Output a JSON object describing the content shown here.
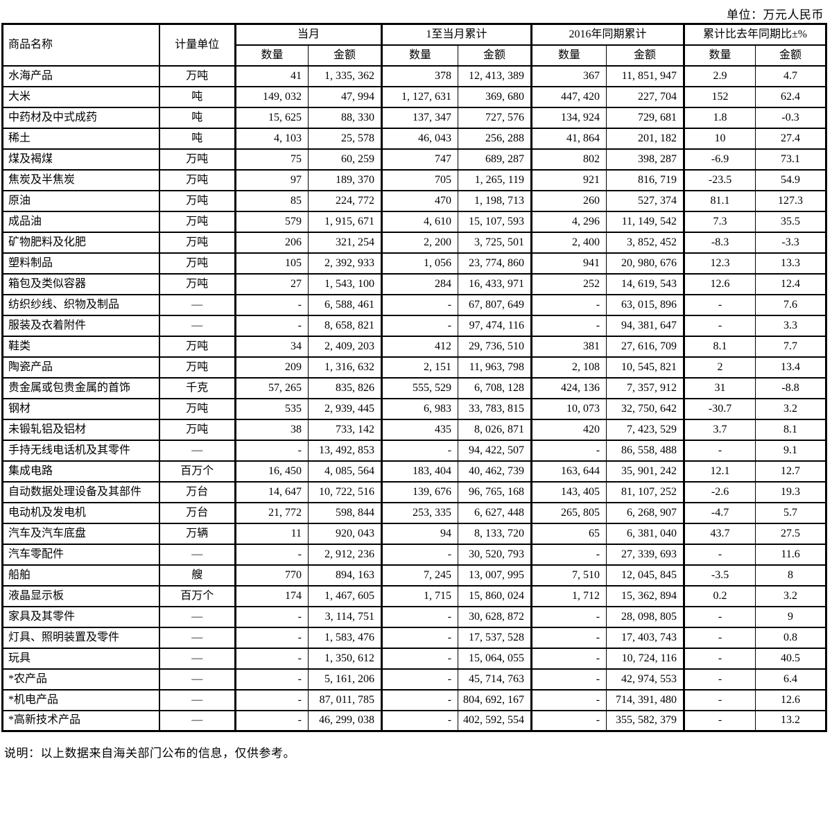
{
  "page": {
    "unit_note": "单位：万元人民币",
    "footer_note": "说明：以上数据来自海关部门公布的信息，仅供参考。"
  },
  "table": {
    "columns": {
      "product": "商品名称",
      "unit": "计量单位",
      "qty": "数量",
      "amount": "金额",
      "groups": [
        "当月",
        "1至当月累计",
        "2016年同期累计",
        "累计比去年同期比±%"
      ]
    },
    "rows": [
      {
        "name": "水海产品",
        "unit": "万吨",
        "month_qty": "41",
        "month_amt": "1,335,362",
        "cum_qty": "378",
        "cum_amt": "12,413,389",
        "prev_qty": "367",
        "prev_amt": "11,851,947",
        "pct_qty": "2.9",
        "pct_amt": "4.7"
      },
      {
        "name": "大米",
        "unit": "吨",
        "month_qty": "149,032",
        "month_amt": "47,994",
        "cum_qty": "1,127,631",
        "cum_amt": "369,680",
        "prev_qty": "447,420",
        "prev_amt": "227,704",
        "pct_qty": "152",
        "pct_amt": "62.4"
      },
      {
        "name": "中药材及中式成药",
        "unit": "吨",
        "month_qty": "15,625",
        "month_amt": "88,330",
        "cum_qty": "137,347",
        "cum_amt": "727,576",
        "prev_qty": "134,924",
        "prev_amt": "729,681",
        "pct_qty": "1.8",
        "pct_amt": "-0.3"
      },
      {
        "name": "稀土",
        "unit": "吨",
        "month_qty": "4,103",
        "month_amt": "25,578",
        "cum_qty": "46,043",
        "cum_amt": "256,288",
        "prev_qty": "41,864",
        "prev_amt": "201,182",
        "pct_qty": "10",
        "pct_amt": "27.4"
      },
      {
        "name": "煤及褐煤",
        "unit": "万吨",
        "month_qty": "75",
        "month_amt": "60,259",
        "cum_qty": "747",
        "cum_amt": "689,287",
        "prev_qty": "802",
        "prev_amt": "398,287",
        "pct_qty": "-6.9",
        "pct_amt": "73.1"
      },
      {
        "name": "焦炭及半焦炭",
        "unit": "万吨",
        "month_qty": "97",
        "month_amt": "189,370",
        "cum_qty": "705",
        "cum_amt": "1,265,119",
        "prev_qty": "921",
        "prev_amt": "816,719",
        "pct_qty": "-23.5",
        "pct_amt": "54.9"
      },
      {
        "name": "原油",
        "unit": "万吨",
        "month_qty": "85",
        "month_amt": "224,772",
        "cum_qty": "470",
        "cum_amt": "1,198,713",
        "prev_qty": "260",
        "prev_amt": "527,374",
        "pct_qty": "81.1",
        "pct_amt": "127.3"
      },
      {
        "name": "成品油",
        "unit": "万吨",
        "month_qty": "579",
        "month_amt": "1,915,671",
        "cum_qty": "4,610",
        "cum_amt": "15,107,593",
        "prev_qty": "4,296",
        "prev_amt": "11,149,542",
        "pct_qty": "7.3",
        "pct_amt": "35.5"
      },
      {
        "name": "矿物肥料及化肥",
        "unit": "万吨",
        "month_qty": "206",
        "month_amt": "321,254",
        "cum_qty": "2,200",
        "cum_amt": "3,725,501",
        "prev_qty": "2,400",
        "prev_amt": "3,852,452",
        "pct_qty": "-8.3",
        "pct_amt": "-3.3"
      },
      {
        "name": "塑料制品",
        "unit": "万吨",
        "month_qty": "105",
        "month_amt": "2,392,933",
        "cum_qty": "1,056",
        "cum_amt": "23,774,860",
        "prev_qty": "941",
        "prev_amt": "20,980,676",
        "pct_qty": "12.3",
        "pct_amt": "13.3"
      },
      {
        "name": "箱包及类似容器",
        "unit": "万吨",
        "month_qty": "27",
        "month_amt": "1,543,100",
        "cum_qty": "284",
        "cum_amt": "16,433,971",
        "prev_qty": "252",
        "prev_amt": "14,619,543",
        "pct_qty": "12.6",
        "pct_amt": "12.4"
      },
      {
        "name": "纺织纱线、织物及制品",
        "unit": "—",
        "month_qty": "-",
        "month_amt": "6,588,461",
        "cum_qty": "-",
        "cum_amt": "67,807,649",
        "prev_qty": "-",
        "prev_amt": "63,015,896",
        "pct_qty": "-",
        "pct_amt": "7.6"
      },
      {
        "name": "服装及衣着附件",
        "unit": "—",
        "month_qty": "-",
        "month_amt": "8,658,821",
        "cum_qty": "-",
        "cum_amt": "97,474,116",
        "prev_qty": "-",
        "prev_amt": "94,381,647",
        "pct_qty": "-",
        "pct_amt": "3.3"
      },
      {
        "name": "鞋类",
        "unit": "万吨",
        "month_qty": "34",
        "month_amt": "2,409,203",
        "cum_qty": "412",
        "cum_amt": "29,736,510",
        "prev_qty": "381",
        "prev_amt": "27,616,709",
        "pct_qty": "8.1",
        "pct_amt": "7.7"
      },
      {
        "name": "陶瓷产品",
        "unit": "万吨",
        "month_qty": "209",
        "month_amt": "1,316,632",
        "cum_qty": "2,151",
        "cum_amt": "11,963,798",
        "prev_qty": "2,108",
        "prev_amt": "10,545,821",
        "pct_qty": "2",
        "pct_amt": "13.4"
      },
      {
        "name": "贵金属或包贵金属的首饰",
        "unit": "千克",
        "month_qty": "57,265",
        "month_amt": "835,826",
        "cum_qty": "555,529",
        "cum_amt": "6,708,128",
        "prev_qty": "424,136",
        "prev_amt": "7,357,912",
        "pct_qty": "31",
        "pct_amt": "-8.8"
      },
      {
        "name": "钢材",
        "unit": "万吨",
        "month_qty": "535",
        "month_amt": "2,939,445",
        "cum_qty": "6,983",
        "cum_amt": "33,783,815",
        "prev_qty": "10,073",
        "prev_amt": "32,750,642",
        "pct_qty": "-30.7",
        "pct_amt": "3.2"
      },
      {
        "name": "未锻轧铝及铝材",
        "unit": "万吨",
        "month_qty": "38",
        "month_amt": "733,142",
        "cum_qty": "435",
        "cum_amt": "8,026,871",
        "prev_qty": "420",
        "prev_amt": "7,423,529",
        "pct_qty": "3.7",
        "pct_amt": "8.1"
      },
      {
        "name": "手持无线电话机及其零件",
        "unit": "—",
        "month_qty": "-",
        "month_amt": "13,492,853",
        "cum_qty": "-",
        "cum_amt": "94,422,507",
        "prev_qty": "-",
        "prev_amt": "86,558,488",
        "pct_qty": "-",
        "pct_amt": "9.1"
      },
      {
        "name": "集成电路",
        "unit": "百万个",
        "month_qty": "16,450",
        "month_amt": "4,085,564",
        "cum_qty": "183,404",
        "cum_amt": "40,462,739",
        "prev_qty": "163,644",
        "prev_amt": "35,901,242",
        "pct_qty": "12.1",
        "pct_amt": "12.7"
      },
      {
        "name": "自动数据处理设备及其部件",
        "unit": "万台",
        "month_qty": "14,647",
        "month_amt": "10,722,516",
        "cum_qty": "139,676",
        "cum_amt": "96,765,168",
        "prev_qty": "143,405",
        "prev_amt": "81,107,252",
        "pct_qty": "-2.6",
        "pct_amt": "19.3"
      },
      {
        "name": "电动机及发电机",
        "unit": "万台",
        "month_qty": "21,772",
        "month_amt": "598,844",
        "cum_qty": "253,335",
        "cum_amt": "6,627,448",
        "prev_qty": "265,805",
        "prev_amt": "6,268,907",
        "pct_qty": "-4.7",
        "pct_amt": "5.7"
      },
      {
        "name": "汽车及汽车底盘",
        "unit": "万辆",
        "month_qty": "11",
        "month_amt": "920,043",
        "cum_qty": "94",
        "cum_amt": "8,133,720",
        "prev_qty": "65",
        "prev_amt": "6,381,040",
        "pct_qty": "43.7",
        "pct_amt": "27.5"
      },
      {
        "name": "汽车零配件",
        "unit": "—",
        "month_qty": "-",
        "month_amt": "2,912,236",
        "cum_qty": "-",
        "cum_amt": "30,520,793",
        "prev_qty": "-",
        "prev_amt": "27,339,693",
        "pct_qty": "-",
        "pct_amt": "11.6"
      },
      {
        "name": "船舶",
        "unit": "艘",
        "month_qty": "770",
        "month_amt": "894,163",
        "cum_qty": "7,245",
        "cum_amt": "13,007,995",
        "prev_qty": "7,510",
        "prev_amt": "12,045,845",
        "pct_qty": "-3.5",
        "pct_amt": "8"
      },
      {
        "name": "液晶显示板",
        "unit": "百万个",
        "month_qty": "174",
        "month_amt": "1,467,605",
        "cum_qty": "1,715",
        "cum_amt": "15,860,024",
        "prev_qty": "1,712",
        "prev_amt": "15,362,894",
        "pct_qty": "0.2",
        "pct_amt": "3.2"
      },
      {
        "name": "家具及其零件",
        "unit": "—",
        "month_qty": "-",
        "month_amt": "3,114,751",
        "cum_qty": "-",
        "cum_amt": "30,628,872",
        "prev_qty": "-",
        "prev_amt": "28,098,805",
        "pct_qty": "-",
        "pct_amt": "9"
      },
      {
        "name": "灯具、照明装置及零件",
        "unit": "—",
        "month_qty": "-",
        "month_amt": "1,583,476",
        "cum_qty": "-",
        "cum_amt": "17,537,528",
        "prev_qty": "-",
        "prev_amt": "17,403,743",
        "pct_qty": "-",
        "pct_amt": "0.8"
      },
      {
        "name": "玩具",
        "unit": "—",
        "month_qty": "-",
        "month_amt": "1,350,612",
        "cum_qty": "-",
        "cum_amt": "15,064,055",
        "prev_qty": "-",
        "prev_amt": "10,724,116",
        "pct_qty": "-",
        "pct_amt": "40.5"
      },
      {
        "name": "*农产品",
        "unit": "—",
        "month_qty": "-",
        "month_amt": "5,161,206",
        "cum_qty": "-",
        "cum_amt": "45,714,763",
        "prev_qty": "-",
        "prev_amt": "42,974,553",
        "pct_qty": "-",
        "pct_amt": "6.4"
      },
      {
        "name": "*机电产品",
        "unit": "—",
        "month_qty": "-",
        "month_amt": "87,011,785",
        "cum_qty": "-",
        "cum_amt": "804,692,167",
        "prev_qty": "-",
        "prev_amt": "714,391,480",
        "pct_qty": "-",
        "pct_amt": "12.6"
      },
      {
        "name": "*高新技术产品",
        "unit": "—",
        "month_qty": "-",
        "month_amt": "46,299,038",
        "cum_qty": "-",
        "cum_amt": "402,592,554",
        "prev_qty": "-",
        "prev_amt": "355,582,379",
        "pct_qty": "-",
        "pct_amt": "13.2"
      }
    ]
  }
}
